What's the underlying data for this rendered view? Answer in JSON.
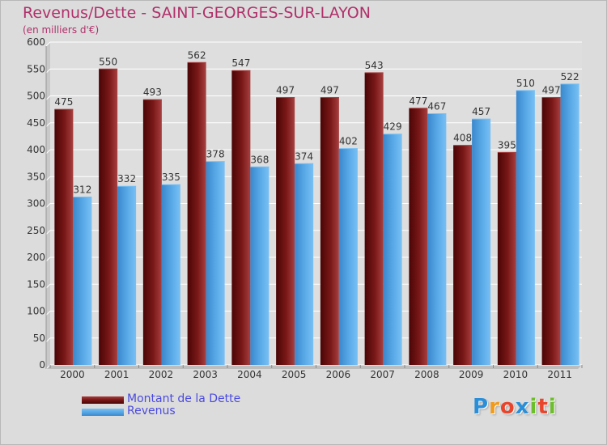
{
  "title": "Revenus/Dette - SAINT-GEORGES-SUR-LAYON",
  "subtitle": "(en milliers d'€)",
  "logo": {
    "letters": [
      "P",
      "r",
      "o",
      "x",
      "i",
      "t",
      "i"
    ],
    "colors": [
      "#2a8fd8",
      "#f29a1a",
      "#e8452c",
      "#2a8fd8",
      "#6cbf2a",
      "#e8452c",
      "#6cbf2a"
    ]
  },
  "colors": {
    "debt": "#7a1818",
    "debt_light": "#a84040",
    "debt_dark": "#4a0505",
    "revenue": "#5aaae8",
    "revenue_light": "#78c0f4",
    "revenue_dark": "#3a88cc",
    "title": "#b0306a",
    "legend_text": "#4a4ae0"
  },
  "chart_data": {
    "type": "bar",
    "title": "Revenus/Dette - SAINT-GEORGES-SUR-LAYON",
    "ylabel": "",
    "xlabel": "",
    "categories": [
      "2000",
      "2001",
      "2002",
      "2003",
      "2004",
      "2005",
      "2006",
      "2007",
      "2008",
      "2009",
      "2010",
      "2011"
    ],
    "series": [
      {
        "name": "Montant de la Dette",
        "values": [
          475,
          550,
          493,
          562,
          547,
          497,
          497,
          543,
          477,
          408,
          395,
          497
        ]
      },
      {
        "name": "Revenus",
        "values": [
          312,
          332,
          335,
          378,
          368,
          374,
          402,
          429,
          467,
          457,
          510,
          522
        ]
      }
    ],
    "ylim": [
      0,
      600
    ],
    "yticks": [
      0,
      50,
      100,
      150,
      200,
      250,
      300,
      350,
      400,
      450,
      500,
      550,
      600
    ],
    "grid": true,
    "legend_position": "bottom-left"
  }
}
